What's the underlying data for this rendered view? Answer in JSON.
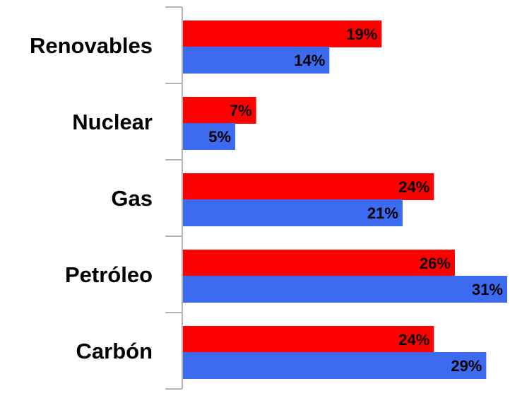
{
  "chart_data": {
    "type": "bar",
    "orientation": "horizontal",
    "categories": [
      "Renovables",
      "Nuclear",
      "Gas",
      "Petróleo",
      "Carbón"
    ],
    "series": [
      {
        "values": [
          19,
          7,
          24,
          26,
          24
        ],
        "value_labels": [
          "19%",
          "7%",
          "24%",
          "26%",
          "24%"
        ],
        "color": "#ff0000"
      },
      {
        "values": [
          14,
          5,
          21,
          31,
          29
        ],
        "value_labels": [
          "14%",
          "5%",
          "21%",
          "31%",
          "29%"
        ],
        "color": "#3d6bf0"
      }
    ],
    "title": "",
    "xlabel": "",
    "ylabel": "",
    "xlim": [
      0,
      31
    ],
    "grid": false,
    "legend": "none",
    "axis_color": "#b4b4b4"
  }
}
